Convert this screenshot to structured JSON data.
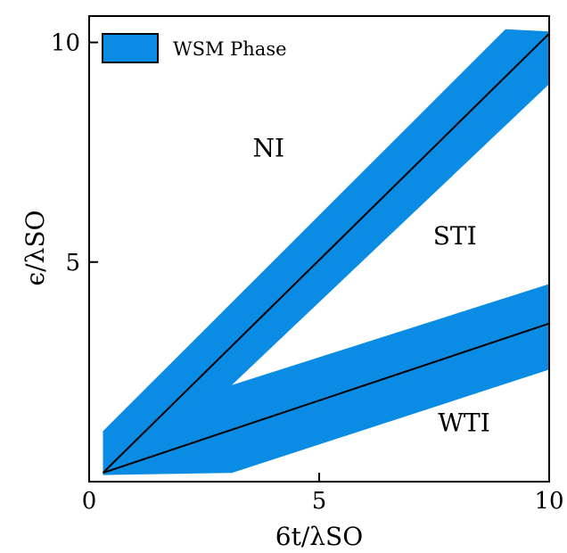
{
  "chart_data": {
    "type": "area",
    "title": "",
    "xlabel": "6t/λSO",
    "ylabel": "ϵ/λSO",
    "xlim": [
      0,
      10
    ],
    "ylim": [
      0,
      10.6
    ],
    "xticks": [
      0,
      5,
      10
    ],
    "yticks": [
      5,
      10
    ],
    "legend": {
      "position": "top-left",
      "entries": [
        "WSM Phase"
      ]
    },
    "grid": false,
    "colors": {
      "band": "#0a8be4",
      "line": "#000000"
    },
    "bands": [
      {
        "name": "WSM Phase",
        "polygon": [
          [
            0.3,
            0.15
          ],
          [
            0.3,
            1.15
          ],
          [
            9.05,
            10.3
          ],
          [
            10.0,
            10.25
          ],
          [
            10.0,
            9.05
          ],
          [
            3.1,
            2.2
          ],
          [
            10.0,
            4.5
          ],
          [
            10.0,
            2.55
          ],
          [
            3.1,
            0.2
          ]
        ]
      }
    ],
    "series": [
      {
        "x": [
          0.3,
          10.0
        ],
        "y": [
          0.2,
          10.2
        ]
      },
      {
        "x": [
          0.3,
          10.0
        ],
        "y": [
          0.2,
          3.6
        ]
      }
    ],
    "annotations": [
      {
        "text": "NI",
        "x": 3.9,
        "y": 7.4
      },
      {
        "text": "STI",
        "x": 7.95,
        "y": 5.4
      },
      {
        "text": "WTI",
        "x": 8.15,
        "y": 1.15
      }
    ]
  }
}
